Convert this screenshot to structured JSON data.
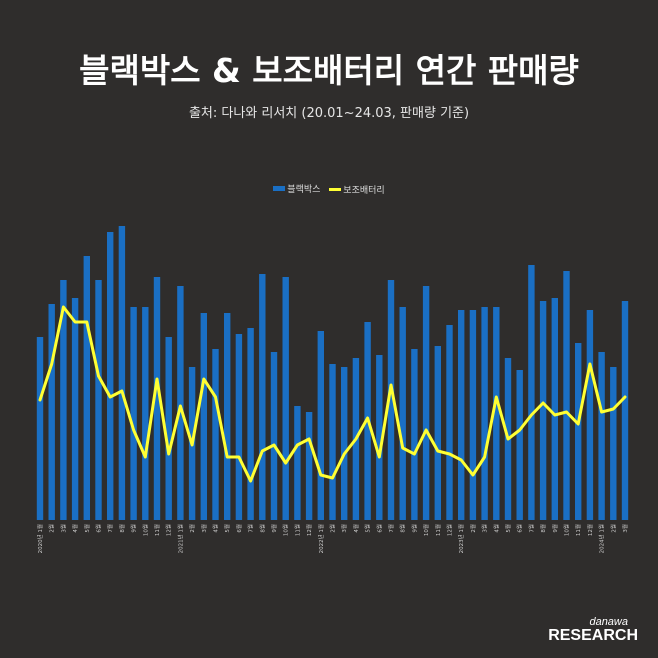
{
  "header": {
    "title": "블랙박스 & 보조배터리 연간 판매량",
    "subtitle": "출처: 다나와 리서치 (20.01~24.03, 판매량 기준)"
  },
  "logo": {
    "line1": "danawa",
    "line2": "RESEARCH"
  },
  "colors": {
    "background": "#2f2d2c",
    "bar": "#1a6fc4",
    "line": "#ffff33"
  },
  "chart_data": {
    "type": "bar",
    "title": "블랙박스 & 보조배터리 연간 판매량",
    "legend_position": "top-center",
    "grid": false,
    "categories": [
      "2020년 1월",
      "2월",
      "3월",
      "4월",
      "5월",
      "6월",
      "7월",
      "8월",
      "9월",
      "10월",
      "11월",
      "12월",
      "2021년 1월",
      "2월",
      "3월",
      "4월",
      "5월",
      "6월",
      "7월",
      "8월",
      "9월",
      "10월",
      "11월",
      "12월",
      "2022년 1월",
      "2월",
      "3월",
      "4월",
      "5월",
      "6월",
      "7월",
      "8월",
      "9월",
      "10월",
      "11월",
      "12월",
      "2023년 1월",
      "2월",
      "3월",
      "4월",
      "5월",
      "6월",
      "7월",
      "8월",
      "9월",
      "10월",
      "11월",
      "12월",
      "2024년 1월",
      "2월",
      "3월"
    ],
    "series": [
      {
        "name": "블랙박스",
        "kind": "bar",
        "values": [
          61,
          72,
          80,
          74,
          88,
          80,
          96,
          98,
          71,
          71,
          81,
          61,
          78,
          51,
          69,
          57,
          69,
          62,
          64,
          82,
          56,
          81,
          38,
          36,
          63,
          52,
          51,
          54,
          66,
          55,
          80,
          71,
          57,
          78,
          58,
          65,
          70,
          70,
          71,
          71,
          54,
          50,
          85,
          73,
          74,
          83,
          59,
          70,
          56,
          51,
          73
        ]
      },
      {
        "name": "보조배터리",
        "kind": "line",
        "values": [
          40,
          52,
          71,
          66,
          66,
          48,
          41,
          43,
          30,
          21,
          47,
          22,
          38,
          25,
          47,
          41,
          21,
          21,
          13,
          23,
          25,
          19,
          25,
          27,
          15,
          14,
          22,
          27,
          34,
          21,
          45,
          24,
          22,
          30,
          23,
          22,
          20,
          15,
          21,
          41,
          27,
          30,
          35,
          39,
          35,
          36,
          32,
          52,
          36,
          37,
          41
        ]
      }
    ]
  }
}
